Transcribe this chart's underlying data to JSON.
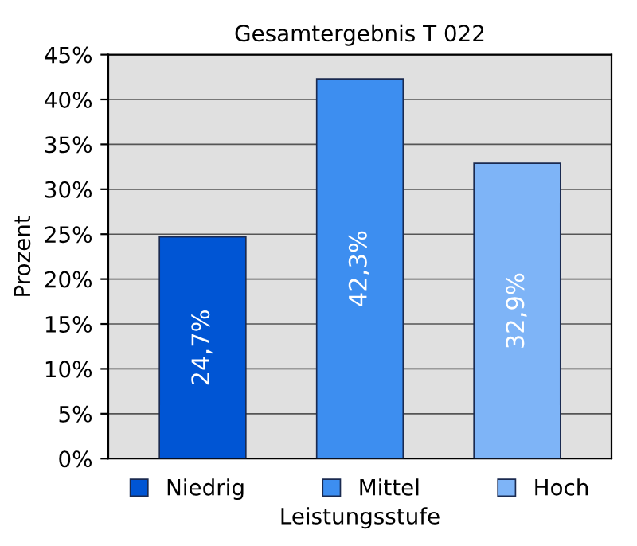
{
  "chart_data": {
    "type": "bar",
    "title": "Gesamtergebnis T 022",
    "xlabel": "Leistungsstufe",
    "ylabel": "Prozent",
    "categories": [
      null,
      null,
      null
    ],
    "series": [
      {
        "name": "Niedrig",
        "color": "#0055d4",
        "values": [
          24.7,
          null,
          null
        ],
        "value_labels": [
          "24,7%",
          null,
          null
        ]
      },
      {
        "name": "Mittel",
        "color": "#3d8ef0",
        "values": [
          null,
          42.3,
          null
        ],
        "value_labels": [
          null,
          "42,3%",
          null
        ]
      },
      {
        "name": "Hoch",
        "color": "#7eb4f7",
        "values": [
          null,
          null,
          32.9
        ],
        "value_labels": [
          null,
          null,
          "32,9%"
        ]
      }
    ],
    "ylim": [
      0,
      45
    ],
    "yticks": [
      {
        "value": 0,
        "label": "0%"
      },
      {
        "value": 5,
        "label": "5%"
      },
      {
        "value": 10,
        "label": "10%"
      },
      {
        "value": 15,
        "label": "15%"
      },
      {
        "value": 20,
        "label": "20%"
      },
      {
        "value": 25,
        "label": "25%"
      },
      {
        "value": 30,
        "label": "30%"
      },
      {
        "value": 35,
        "label": "35%"
      },
      {
        "value": 40,
        "label": "40%"
      },
      {
        "value": 45,
        "label": "45%"
      }
    ],
    "grid": "y",
    "legend": "bottom",
    "tick_labels": "y"
  }
}
